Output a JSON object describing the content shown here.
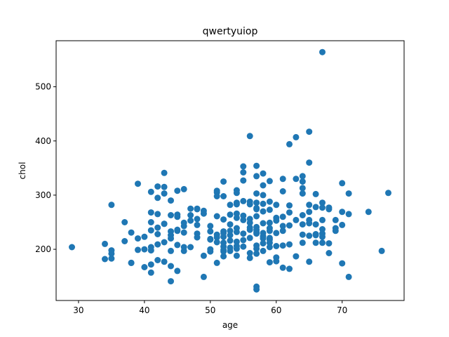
{
  "chart_data": {
    "type": "scatter",
    "title": "qwertyuiop",
    "xlabel": "age",
    "ylabel": "chol",
    "xlim": [
      26.6,
      79.4
    ],
    "ylim": [
      105.5,
      585
    ],
    "xticks": [
      30,
      40,
      50,
      60,
      70
    ],
    "yticks": [
      200,
      300,
      400,
      500
    ],
    "grid": false,
    "legend": "none",
    "color": "#1f77b4",
    "series": [
      {
        "points": [
          [
            29,
            204
          ],
          [
            34,
            210
          ],
          [
            34,
            182
          ],
          [
            35,
            282
          ],
          [
            35,
            198
          ],
          [
            35,
            183
          ],
          [
            35,
            192
          ],
          [
            37,
            250
          ],
          [
            37,
            215
          ],
          [
            38,
            231
          ],
          [
            38,
            175
          ],
          [
            38,
            175
          ],
          [
            39,
            321
          ],
          [
            39,
            220
          ],
          [
            39,
            199
          ],
          [
            40,
            223
          ],
          [
            40,
            167
          ],
          [
            40,
            200
          ],
          [
            41,
            306
          ],
          [
            41,
            250
          ],
          [
            41,
            268
          ],
          [
            41,
            235
          ],
          [
            41,
            204
          ],
          [
            41,
            198
          ],
          [
            41,
            172
          ],
          [
            41,
            157
          ],
          [
            42,
            316
          ],
          [
            42,
            295
          ],
          [
            42,
            265
          ],
          [
            42,
            240
          ],
          [
            42,
            228
          ],
          [
            42,
            209
          ],
          [
            42,
            180
          ],
          [
            43,
            341
          ],
          [
            43,
            315
          ],
          [
            43,
            303
          ],
          [
            43,
            247
          ],
          [
            43,
            247
          ],
          [
            43,
            213
          ],
          [
            43,
            177
          ],
          [
            44,
            290
          ],
          [
            44,
            263
          ],
          [
            44,
            233
          ],
          [
            44,
            226
          ],
          [
            44,
            220
          ],
          [
            44,
            197
          ],
          [
            44,
            169
          ],
          [
            44,
            141
          ],
          [
            45,
            308
          ],
          [
            45,
            264
          ],
          [
            45,
            260
          ],
          [
            45,
            236
          ],
          [
            45,
            234
          ],
          [
            45,
            208
          ],
          [
            45,
            160
          ],
          [
            46,
            311
          ],
          [
            46,
            249
          ],
          [
            46,
            243
          ],
          [
            46,
            231
          ],
          [
            46,
            204
          ],
          [
            46,
            197
          ],
          [
            47,
            275
          ],
          [
            47,
            263
          ],
          [
            47,
            253
          ],
          [
            47,
            204
          ],
          [
            48,
            275
          ],
          [
            48,
            274
          ],
          [
            48,
            256
          ],
          [
            48,
            245
          ],
          [
            48,
            229
          ],
          [
            48,
            222
          ],
          [
            49,
            271
          ],
          [
            49,
            266
          ],
          [
            49,
            188
          ],
          [
            49,
            149
          ],
          [
            50,
            243
          ],
          [
            50,
            233
          ],
          [
            50,
            219
          ],
          [
            50,
            218
          ],
          [
            50,
            200
          ],
          [
            50,
            196
          ],
          [
            51,
            308
          ],
          [
            51,
            305
          ],
          [
            51,
            298
          ],
          [
            51,
            261
          ],
          [
            51,
            227
          ],
          [
            51,
            222
          ],
          [
            51,
            213
          ],
          [
            51,
            175
          ],
          [
            52,
            325
          ],
          [
            52,
            298
          ],
          [
            52,
            255
          ],
          [
            52,
            233
          ],
          [
            52,
            230
          ],
          [
            52,
            223
          ],
          [
            52,
            212
          ],
          [
            52,
            205
          ],
          [
            52,
            199
          ],
          [
            52,
            196
          ],
          [
            52,
            187
          ],
          [
            53,
            282
          ],
          [
            53,
            264
          ],
          [
            53,
            246
          ],
          [
            53,
            234
          ],
          [
            53,
            226
          ],
          [
            53,
            216
          ],
          [
            53,
            203
          ],
          [
            53,
            197
          ],
          [
            54,
            309
          ],
          [
            54,
            304
          ],
          [
            54,
            286
          ],
          [
            54,
            283
          ],
          [
            54,
            266
          ],
          [
            54,
            258
          ],
          [
            54,
            239
          ],
          [
            54,
            232
          ],
          [
            54,
            214
          ],
          [
            54,
            206
          ],
          [
            54,
            201
          ],
          [
            54,
            188
          ],
          [
            55,
            353
          ],
          [
            55,
            342
          ],
          [
            55,
            327
          ],
          [
            55,
            289
          ],
          [
            55,
            262
          ],
          [
            55,
            254
          ],
          [
            55,
            229
          ],
          [
            55,
            217
          ],
          [
            55,
            205
          ],
          [
            56,
            409
          ],
          [
            56,
            288
          ],
          [
            56,
            283
          ],
          [
            56,
            256
          ],
          [
            56,
            249
          ],
          [
            56,
            240
          ],
          [
            56,
            236
          ],
          [
            56,
            221
          ],
          [
            56,
            193
          ],
          [
            56,
            184
          ],
          [
            57,
            354
          ],
          [
            57,
            335
          ],
          [
            57,
            303
          ],
          [
            57,
            286
          ],
          [
            57,
            276
          ],
          [
            57,
            274
          ],
          [
            57,
            261
          ],
          [
            57,
            241
          ],
          [
            57,
            236
          ],
          [
            57,
            232
          ],
          [
            57,
            229
          ],
          [
            57,
            207
          ],
          [
            57,
            201
          ],
          [
            57,
            192
          ],
          [
            57,
            131
          ],
          [
            57,
            126
          ],
          [
            58,
            340
          ],
          [
            58,
            318
          ],
          [
            58,
            300
          ],
          [
            58,
            284
          ],
          [
            58,
            270
          ],
          [
            58,
            248
          ],
          [
            58,
            230
          ],
          [
            58,
            224
          ],
          [
            58,
            220
          ],
          [
            58,
            211
          ],
          [
            58,
            197
          ],
          [
            59,
            326
          ],
          [
            59,
            288
          ],
          [
            59,
            273
          ],
          [
            59,
            249
          ],
          [
            59,
            239
          ],
          [
            59,
            234
          ],
          [
            59,
            221
          ],
          [
            59,
            218
          ],
          [
            59,
            212
          ],
          [
            59,
            204
          ],
          [
            59,
            176
          ],
          [
            60,
            282
          ],
          [
            60,
            258
          ],
          [
            60,
            253
          ],
          [
            60,
            230
          ],
          [
            60,
            206
          ],
          [
            60,
            185
          ],
          [
            60,
            178
          ],
          [
            61,
            330
          ],
          [
            61,
            307
          ],
          [
            61,
            260
          ],
          [
            61,
            243
          ],
          [
            61,
            234
          ],
          [
            61,
            207
          ],
          [
            61,
            166
          ],
          [
            62,
            394
          ],
          [
            62,
            281
          ],
          [
            62,
            268
          ],
          [
            62,
            244
          ],
          [
            62,
            209
          ],
          [
            62,
            164
          ],
          [
            63,
            407
          ],
          [
            63,
            330
          ],
          [
            63,
            254
          ],
          [
            63,
            187
          ],
          [
            64,
            335
          ],
          [
            64,
            325
          ],
          [
            64,
            313
          ],
          [
            64,
            303
          ],
          [
            64,
            263
          ],
          [
            64,
            246
          ],
          [
            64,
            227
          ],
          [
            64,
            212
          ],
          [
            65,
            417
          ],
          [
            65,
            360
          ],
          [
            65,
            282
          ],
          [
            65,
            269
          ],
          [
            65,
            254
          ],
          [
            65,
            248
          ],
          [
            65,
            225
          ],
          [
            65,
            177
          ],
          [
            66,
            302
          ],
          [
            66,
            278
          ],
          [
            66,
            246
          ],
          [
            66,
            228
          ],
          [
            66,
            226
          ],
          [
            66,
            212
          ],
          [
            67,
            564
          ],
          [
            67,
            286
          ],
          [
            67,
            277
          ],
          [
            67,
            254
          ],
          [
            67,
            237
          ],
          [
            67,
            229
          ],
          [
            67,
            223
          ],
          [
            67,
            212
          ],
          [
            68,
            277
          ],
          [
            68,
            274
          ],
          [
            68,
            211
          ],
          [
            68,
            193
          ],
          [
            69,
            254
          ],
          [
            69,
            239
          ],
          [
            69,
            234
          ],
          [
            70,
            322
          ],
          [
            70,
            269
          ],
          [
            70,
            245
          ],
          [
            70,
            174
          ],
          [
            71,
            303
          ],
          [
            71,
            265
          ],
          [
            71,
            149
          ],
          [
            74,
            269
          ],
          [
            76,
            197
          ],
          [
            77,
            304
          ]
        ]
      }
    ]
  }
}
